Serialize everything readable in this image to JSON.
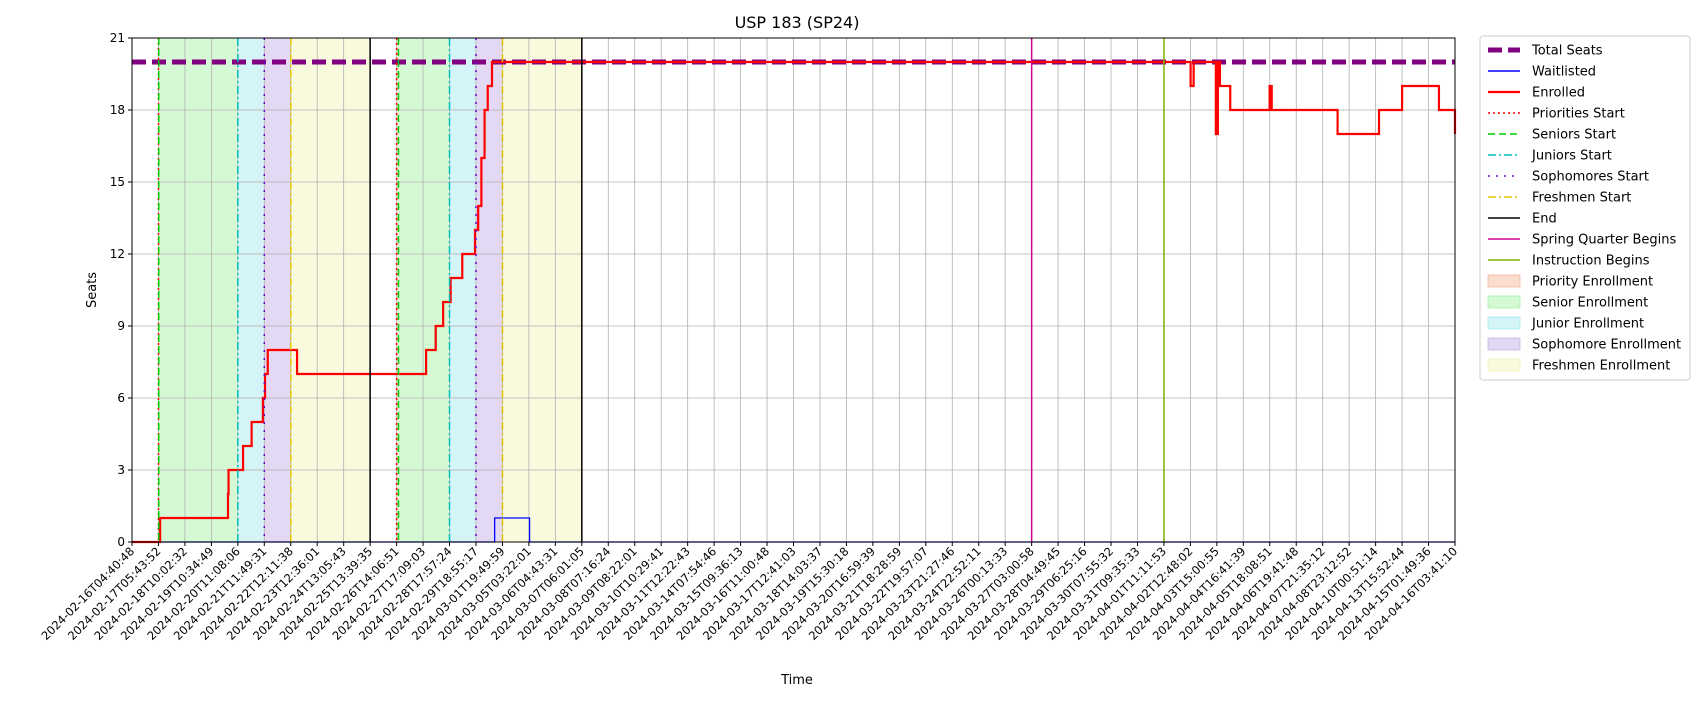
{
  "chart_data": {
    "type": "line",
    "title": "USP 183 (SP24)",
    "xlabel": "Time",
    "ylabel": "Seats",
    "ylim": [
      0,
      21
    ],
    "yticks": [
      0,
      3,
      6,
      9,
      12,
      15,
      18,
      21
    ],
    "xticks": [
      "2024-02-16T04:40:48",
      "2024-02-17T05:43:52",
      "2024-02-18T10:02:32",
      "2024-02-19T10:34:49",
      "2024-02-20T11:08:06",
      "2024-02-21T11:49:31",
      "2024-02-22T12:11:38",
      "2024-02-23T12:36:01",
      "2024-02-24T13:05:43",
      "2024-02-25T13:39:35",
      "2024-02-26T14:06:51",
      "2024-02-27T17:09:03",
      "2024-02-28T17:57:24",
      "2024-02-29T18:55:17",
      "2024-03-01T19:49:59",
      "2024-03-05T03:22:01",
      "2024-03-06T04:43:31",
      "2024-03-07T06:01:05",
      "2024-03-08T07:16:24",
      "2024-03-09T08:22:01",
      "2024-03-10T10:29:41",
      "2024-03-11T12:22:43",
      "2024-03-14T07:54:46",
      "2024-03-15T09:36:13",
      "2024-03-16T11:00:48",
      "2024-03-17T12:41:03",
      "2024-03-18T14:03:37",
      "2024-03-19T15:30:18",
      "2024-03-20T16:59:39",
      "2024-03-21T18:28:59",
      "2024-03-22T19:57:07",
      "2024-03-23T21:27:46",
      "2024-03-24T22:52:11",
      "2024-03-26T00:13:33",
      "2024-03-27T03:00:58",
      "2024-03-28T04:49:45",
      "2024-03-29T06:25:16",
      "2024-03-30T07:55:32",
      "2024-03-31T09:35:33",
      "2024-04-01T11:11:53",
      "2024-04-02T12:48:02",
      "2024-04-03T15:00:55",
      "2024-04-04T16:41:39",
      "2024-04-05T18:08:51",
      "2024-04-06T19:41:48",
      "2024-04-07T21:35:12",
      "2024-04-08T23:12:52",
      "2024-04-10T00:51:14",
      "2024-04-13T15:52:44",
      "2024-04-15T01:49:36",
      "2024-04-16T03:41:10"
    ],
    "grid": true,
    "legend_position": "outside-right",
    "series": [
      {
        "name": "Total Seats",
        "style": "dashed",
        "color": "#800080",
        "x": [
          "2024-02-16T04:40:48",
          "2024-04-16T03:41:10"
        ],
        "y": [
          20,
          20
        ]
      },
      {
        "name": "Waitlisted",
        "style": "solid",
        "color": "#0000ff",
        "x": [
          "2024-02-16T04:40:48",
          "2024-03-01T12:00:00",
          "2024-03-01T12:30:00",
          "2024-03-05T03:22:01",
          "2024-03-05T04:00:00",
          "2024-04-16T03:41:10"
        ],
        "y": [
          0,
          0,
          1,
          1,
          0,
          0
        ]
      },
      {
        "name": "Enrolled",
        "style": "solid",
        "color": "#ff0000",
        "x": [
          "2024-02-16T04:40:48",
          "2024-02-17T07:00:00",
          "2024-02-17T07:30:00",
          "2024-02-20T02:00:00",
          "2024-02-20T02:30:00",
          "2024-02-20T06:00:00",
          "2024-02-20T16:00:00",
          "2024-02-21T00:00:00",
          "2024-02-21T10:30:00",
          "2024-02-21T12:30:00",
          "2024-02-21T15:00:00",
          "2024-02-22T18:00:00",
          "2024-02-27T10:00:00",
          "2024-02-27T20:00:00",
          "2024-02-28T05:00:00",
          "2024-02-28T12:00:00",
          "2024-02-28T19:00:00",
          "2024-02-29T06:00:00",
          "2024-02-29T18:00:00",
          "2024-02-29T21:00:00",
          "2024-03-01T00:00:00",
          "2024-03-01T03:00:00",
          "2024-03-01T06:00:00",
          "2024-03-01T10:00:00",
          "2024-03-01T13:00:00",
          "2024-03-01T20:00:00",
          "2024-04-02T13:00:00",
          "2024-04-02T16:00:00",
          "2024-04-03T14:00:00",
          "2024-04-03T16:00:00",
          "2024-04-03T18:00:00",
          "2024-04-04T04:00:00",
          "2024-04-05T18:00:00",
          "2024-04-05T20:00:00",
          "2024-04-08T12:00:00",
          "2024-04-10T00:51:14",
          "2024-04-10T12:00:00",
          "2024-04-13T15:52:44",
          "2024-04-15T12:00:00",
          "2024-04-16T03:41:10"
        ],
        "y": [
          0,
          0,
          1,
          2,
          3,
          3,
          4,
          5,
          6,
          7,
          8,
          7,
          7,
          8,
          9,
          10,
          11,
          12,
          13,
          14,
          16,
          18,
          19,
          20,
          20,
          20,
          19,
          20,
          17,
          20,
          19,
          18,
          19,
          18,
          17,
          17,
          18,
          19,
          18,
          17
        ]
      },
      {
        "name": "Priorities Start",
        "style": "dotted",
        "color": "#ff0000",
        "x": [
          "2024-02-17T05:43:52",
          "2024-02-26T14:06:51"
        ]
      },
      {
        "name": "Seniors Start",
        "style": "dashed",
        "color": "#00cc00",
        "x": [
          "2024-02-17T06:00:00",
          "2024-02-26T16:00:00"
        ]
      },
      {
        "name": "Juniors Start",
        "style": "dashdot",
        "color": "#00bfbf",
        "x": [
          "2024-02-20T11:08:06",
          "2024-02-28T17:57:24"
        ]
      },
      {
        "name": "Sophomores Start",
        "style": "dashdotdotted",
        "color": "#6a00d4",
        "x": [
          "2024-02-21T11:49:31",
          "2024-02-29T18:55:17"
        ]
      },
      {
        "name": "Freshmen Start",
        "style": "dashdot",
        "color": "#e6c200",
        "x": [
          "2024-02-22T12:11:38",
          "2024-03-01T19:49:59"
        ]
      },
      {
        "name": "End",
        "style": "solid",
        "color": "#000000",
        "x": [
          "2024-02-25T13:39:35",
          "2024-03-07T06:01:05"
        ]
      },
      {
        "name": "Spring Quarter Begins",
        "style": "solid",
        "color": "#d4008f",
        "x": [
          "2024-03-27T03:00:58"
        ]
      },
      {
        "name": "Instruction Begins",
        "style": "solid",
        "color": "#7fb000",
        "x": [
          "2024-04-01T11:11:53"
        ]
      }
    ],
    "regions": [
      {
        "name": "Priority Enrollment",
        "color": "#f4a582",
        "from": [
          "2024-02-17T05:43:52",
          "2024-02-26T14:06:51"
        ],
        "to": [
          "2024-02-17T06:00:00",
          "2024-02-26T16:00:00"
        ]
      },
      {
        "name": "Senior Enrollment",
        "color": "#90ee90",
        "from": [
          "2024-02-17T06:00:00",
          "2024-02-26T16:00:00"
        ],
        "to": [
          "2024-02-20T11:08:06",
          "2024-02-28T17:57:24"
        ]
      },
      {
        "name": "Junior Enrollment",
        "color": "#8fe3ea",
        "from": [
          "2024-02-20T11:08:06",
          "2024-02-28T17:57:24"
        ],
        "to": [
          "2024-02-21T11:49:31",
          "2024-02-29T18:55:17"
        ]
      },
      {
        "name": "Sophomore Enrollment",
        "color": "#b79ce6",
        "from": [
          "2024-02-21T11:49:31",
          "2024-02-29T18:55:17"
        ],
        "to": [
          "2024-02-22T12:11:38",
          "2024-03-01T19:49:59"
        ]
      },
      {
        "name": "Freshmen Enrollment",
        "color": "#eeeea8",
        "from": [
          "2024-02-22T12:11:38",
          "2024-03-01T19:49:59"
        ],
        "to": [
          "2024-02-25T13:39:35",
          "2024-03-07T06:01:05"
        ]
      }
    ]
  }
}
